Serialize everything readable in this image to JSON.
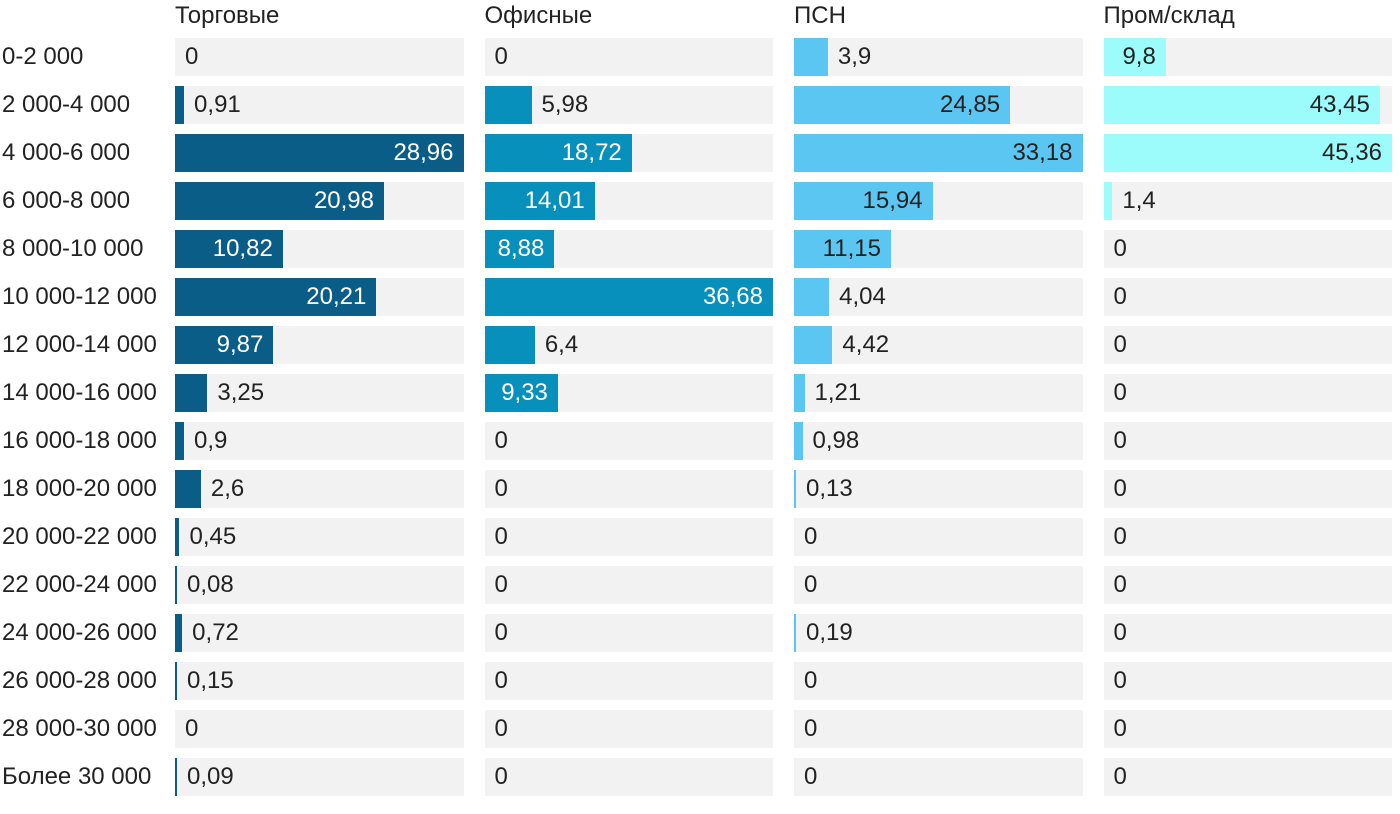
{
  "chart_data": {
    "type": "bar",
    "orientation": "horizontal",
    "title": "",
    "xlabel": "",
    "ylabel": "",
    "grid": false,
    "legend_position": "column-headers-top",
    "scale": "per-column-max",
    "value_format": "comma-decimal",
    "track_color": "#f2f2f2",
    "text_color": "#222222",
    "categories": [
      "0-2 000",
      "2 000-4 000",
      "4 000-6 000",
      "6 000-8 000",
      "8 000-10 000",
      "10 000-12 000",
      "12 000-14 000",
      "14 000-16 000",
      "16 000-18 000",
      "18 000-20 000",
      "20 000-22 000",
      "22 000-24 000",
      "24 000-26 000",
      "26 000-28 000",
      "28 000-30 000",
      "Более 30 000"
    ],
    "series": [
      {
        "name": "Торговые",
        "color": "#0a5d87",
        "inside_label_color": "#ffffff",
        "values": [
          0,
          0.91,
          28.96,
          20.98,
          10.82,
          20.21,
          9.87,
          3.25,
          0.9,
          2.6,
          0.45,
          0.08,
          0.72,
          0.15,
          0,
          0.09
        ]
      },
      {
        "name": "Офисные",
        "color": "#0890bd",
        "inside_label_color": "#ffffff",
        "values": [
          0,
          5.98,
          18.72,
          14.01,
          8.88,
          36.68,
          6.4,
          9.33,
          0,
          0,
          0,
          0,
          0,
          0,
          0,
          0
        ]
      },
      {
        "name": "ПСН",
        "color": "#5cc6f2",
        "inside_label_color": "#222222",
        "values": [
          3.9,
          24.85,
          33.18,
          15.94,
          11.15,
          4.04,
          4.42,
          1.21,
          0.98,
          0.13,
          0,
          0,
          0.19,
          0,
          0,
          0
        ]
      },
      {
        "name": "Пром/склад",
        "color": "#9cfbfb",
        "inside_label_color": "#222222",
        "values": [
          9.8,
          43.45,
          45.36,
          1.4,
          0,
          0,
          0,
          0,
          0,
          0,
          0,
          0,
          0,
          0,
          0,
          0
        ]
      }
    ]
  }
}
